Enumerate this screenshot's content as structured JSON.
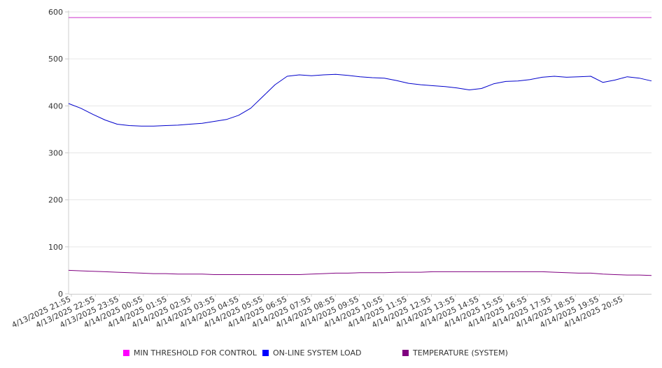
{
  "chart_data": {
    "type": "line",
    "ylim": [
      0,
      600
    ],
    "yticks": [
      0,
      100,
      200,
      300,
      400,
      500,
      600
    ],
    "grid": "horizontal",
    "legend_position": "bottom",
    "x_tick_labels": [
      "4/13/2025 21:55",
      "4/13/2025 22:55",
      "4/13/2025 23:55",
      "4/14/2025 00:55",
      "4/14/2025 01:55",
      "4/14/2025 02:55",
      "4/14/2025 03:55",
      "4/14/2025 04:55",
      "4/14/2025 05:55",
      "4/14/2025 06:55",
      "4/14/2025 07:55",
      "4/14/2025 08:55",
      "4/14/2025 09:55",
      "4/14/2025 10:55",
      "4/14/2025 11:55",
      "4/14/2025 12:55",
      "4/14/2025 13:55",
      "4/14/2025 14:55",
      "4/14/2025 15:55",
      "4/14/2025 16:55",
      "4/14/2025 17:55",
      "4/14/2025 18:55",
      "4/14/2025 19:55",
      "4/14/2025 20:55"
    ],
    "series": [
      {
        "name": "MIN THRESHOLD FOR CONTROL",
        "color": "#cc33cc",
        "legend_color": "#ff00ff",
        "values": [
          588,
          588,
          588,
          588,
          588,
          588,
          588,
          588,
          588,
          588,
          588,
          588,
          588,
          588,
          588,
          588,
          588,
          588,
          588,
          588,
          588,
          588,
          588,
          588,
          588,
          588,
          588,
          588,
          588,
          588,
          588,
          588,
          588,
          588,
          588,
          588,
          588,
          588,
          588,
          588,
          588,
          588,
          588,
          588,
          588,
          588,
          588,
          588,
          588
        ]
      },
      {
        "name": "ON-LINE SYSTEM LOAD",
        "color": "#0000cc",
        "legend_color": "#0000ff",
        "values": [
          405,
          395,
          382,
          370,
          361,
          358,
          357,
          357,
          358,
          359,
          361,
          363,
          367,
          371,
          380,
          395,
          420,
          445,
          463,
          466,
          464,
          466,
          467,
          465,
          462,
          460,
          459,
          454,
          448,
          445,
          443,
          441,
          438,
          434,
          437,
          447,
          452,
          453,
          456,
          461,
          463,
          461,
          462,
          463,
          450,
          455,
          462,
          459,
          453
        ]
      },
      {
        "name": "TEMPERATURE (SYSTEM)",
        "color": "#800080",
        "legend_color": "#800080",
        "values": [
          50,
          49,
          48,
          47,
          46,
          45,
          44,
          43,
          43,
          42,
          42,
          42,
          41,
          41,
          41,
          41,
          41,
          41,
          41,
          41,
          42,
          43,
          44,
          44,
          45,
          45,
          45,
          46,
          46,
          46,
          47,
          47,
          47,
          47,
          47,
          47,
          47,
          47,
          47,
          47,
          46,
          45,
          44,
          44,
          42,
          41,
          40,
          40,
          39
        ]
      }
    ]
  }
}
